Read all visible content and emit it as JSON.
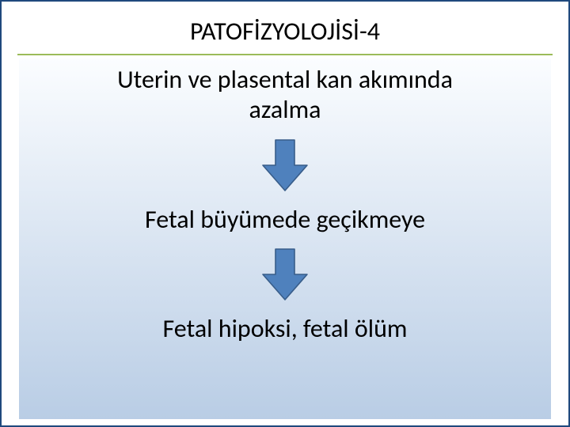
{
  "slide": {
    "outer_border_color": "#1f497d",
    "title_border_color": "#9bbb59",
    "title": {
      "text": "PATOFİZYOLOJİSİ-4",
      "fontsize": 32,
      "color": "#000000"
    },
    "content": {
      "gradient_top": "#fbfdff",
      "gradient_bottom": "#b9cde5",
      "steps": [
        {
          "text": "Uterin ve plasental kan akımında\nazalma",
          "fontsize": 32
        },
        {
          "text": "Fetal büyümede geçikmeye",
          "fontsize": 32
        },
        {
          "text": "Fetal hipoksi, fetal  ölüm",
          "fontsize": 32
        }
      ],
      "arrow": {
        "fill": "#4f81bd",
        "stroke": "#385d8a",
        "stroke_width": 2,
        "width": 80,
        "height": 80
      }
    }
  }
}
